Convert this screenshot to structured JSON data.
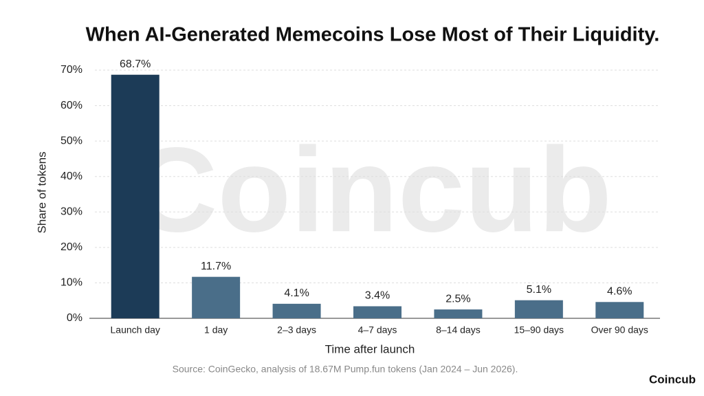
{
  "chart_data": {
    "type": "bar",
    "title": "When AI-Generated Memecoins Lose Most of Their Liquidity.",
    "watermark": "Coincub",
    "brand": "Coincub",
    "source": "Source: CoinGecko, analysis of 18.67M Pump.fun tokens (Jan 2024 – Jun 2026).",
    "xlabel": "Time after launch",
    "ylabel": "Share of tokens",
    "categories": [
      "Launch day",
      "1 day",
      "2–3 days",
      "4–7 days",
      "8–14 days",
      "15–90 days",
      "Over 90 days"
    ],
    "values": [
      68.7,
      11.7,
      4.1,
      3.4,
      2.5,
      5.1,
      4.6
    ],
    "value_labels": [
      "68.7%",
      "11.7%",
      "4.1%",
      "3.4%",
      "2.5%",
      "5.1%",
      "4.6%"
    ],
    "colors": [
      "#1c3b57",
      "#4a6e89",
      "#4a6e89",
      "#4a6e89",
      "#4a6e89",
      "#4a6e89",
      "#4a6e89"
    ],
    "ylim": [
      0,
      70
    ],
    "yticks": [
      {
        "value": 0,
        "label": "0%"
      },
      {
        "value": 10,
        "label": "10%"
      },
      {
        "value": 20,
        "label": "20%"
      },
      {
        "value": 30,
        "label": "30%"
      },
      {
        "value": 40,
        "label": "40%"
      },
      {
        "value": 50,
        "label": "50%"
      },
      {
        "value": 60,
        "label": "60%"
      },
      {
        "value": 70,
        "label": "70%"
      }
    ],
    "grid": true
  }
}
